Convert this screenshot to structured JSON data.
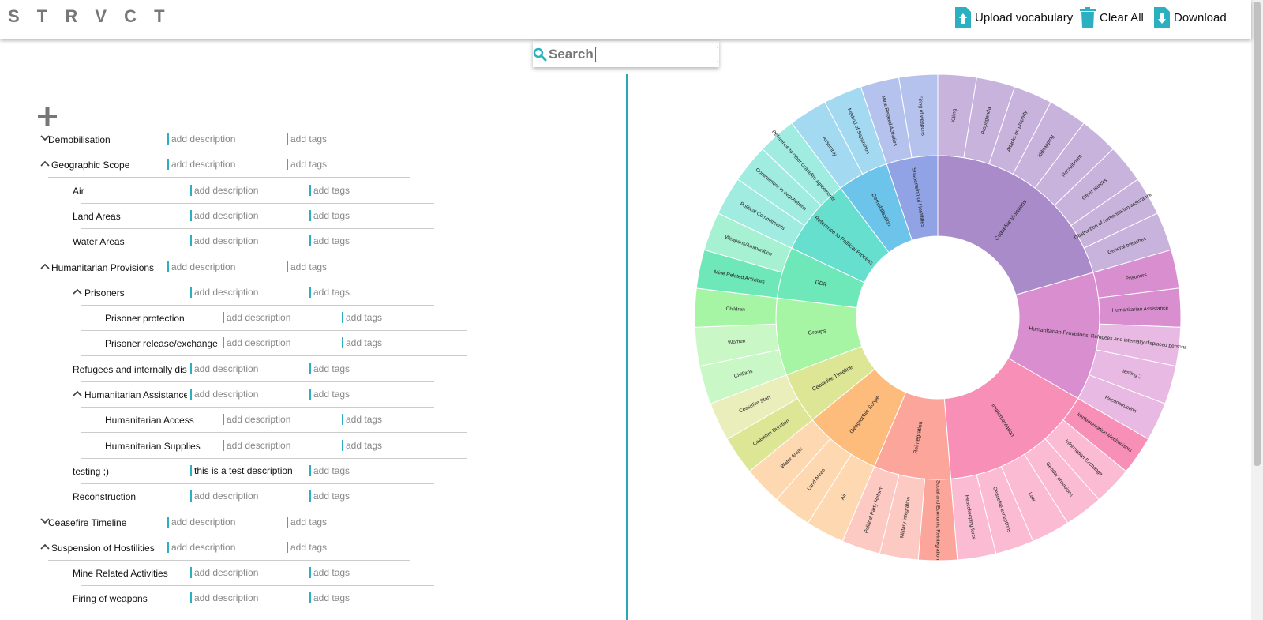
{
  "app": {
    "logo": "S T R V C T"
  },
  "toolbar": {
    "upload_label": "Upload vocabulary",
    "clear_label": "Clear All",
    "download_label": "Download",
    "icon_color": "#2ab0c0"
  },
  "search": {
    "label": "Search",
    "value": ""
  },
  "tree": {
    "add_icon": "plus-icon",
    "rows": [
      {
        "name": "Demobilisation",
        "level": 0,
        "chevron": "down",
        "desc": "add description",
        "tags": "add tags"
      },
      {
        "name": "Geographic Scope",
        "level": 0,
        "chevron": "up",
        "desc": "add description",
        "tags": "add tags"
      },
      {
        "name": "Air",
        "level": 1,
        "chevron": "",
        "desc": "add description",
        "tags": "add tags"
      },
      {
        "name": "Land Areas",
        "level": 1,
        "chevron": "",
        "desc": "add description",
        "tags": "add tags"
      },
      {
        "name": "Water Areas",
        "level": 1,
        "chevron": "",
        "desc": "add description",
        "tags": "add tags"
      },
      {
        "name": "Humanitarian Provisions",
        "level": 0,
        "chevron": "up",
        "desc": "add description",
        "tags": "add tags"
      },
      {
        "name": "Prisoners",
        "level": 1,
        "chevron": "up",
        "desc": "add description",
        "tags": "add tags"
      },
      {
        "name": "Prisoner protection",
        "level": 2,
        "chevron": "",
        "desc": "add description",
        "tags": "add tags"
      },
      {
        "name": "Prisoner release/exchange",
        "level": 2,
        "chevron": "",
        "desc": "add description",
        "tags": "add tags"
      },
      {
        "name": "Refugees and internally displa",
        "level": 1,
        "chevron": "",
        "desc": "add description",
        "tags": "add tags"
      },
      {
        "name": "Humanitarian Assistance",
        "level": 1,
        "chevron": "up",
        "desc": "add description",
        "tags": "add tags"
      },
      {
        "name": "Humanitarian Access",
        "level": 2,
        "chevron": "",
        "desc": "add description",
        "tags": "add tags"
      },
      {
        "name": "Humanitarian Supplies",
        "level": 2,
        "chevron": "",
        "desc": "add description",
        "tags": "add tags"
      },
      {
        "name": "testing ;)",
        "level": 1,
        "chevron": "",
        "desc": "this is a test description",
        "tags": "add tags",
        "filled": true
      },
      {
        "name": "Reconstruction",
        "level": 1,
        "chevron": "",
        "desc": "add description",
        "tags": "add tags"
      },
      {
        "name": "Ceasefire Timeline",
        "level": 0,
        "chevron": "down",
        "desc": "add description",
        "tags": "add tags"
      },
      {
        "name": "Suspension of Hostilities",
        "level": 0,
        "chevron": "up",
        "desc": "add description",
        "tags": "add tags"
      },
      {
        "name": "Mine Related Activities",
        "level": 1,
        "chevron": "",
        "desc": "add description",
        "tags": "add tags"
      },
      {
        "name": "Firing of weapons",
        "level": 1,
        "chevron": "",
        "desc": "add description",
        "tags": "add tags"
      }
    ]
  },
  "sunburst": {
    "inner": [
      {
        "name": "Ceasefire Violations",
        "color": "#a98bc9",
        "outer": [
          {
            "name": "Killing",
            "color": "#c7b3dc"
          },
          {
            "name": "Propaganda",
            "color": "#c7b3dc"
          },
          {
            "name": "Attacks on property",
            "color": "#c7b3dc"
          },
          {
            "name": "Kidnapping",
            "color": "#c7b3dc"
          },
          {
            "name": "Recruitment",
            "color": "#c7b3dc"
          },
          {
            "name": "Other attacks",
            "color": "#c7b3dc"
          },
          {
            "name": "Obstruction of humanitarian assistance",
            "color": "#c7b3dc"
          },
          {
            "name": "General breaches",
            "color": "#c7b3dc"
          }
        ]
      },
      {
        "name": "Humanitarian Provisions",
        "color": "#d98ed0",
        "outer": [
          {
            "name": "Prisoners",
            "color": "#d98ed0"
          },
          {
            "name": "Humanitarian Assistance",
            "color": "#d98ed0"
          },
          {
            "name": "Refugees and internally displaced persons",
            "color": "#e8b9e2"
          },
          {
            "name": "testing ;)",
            "color": "#e8b9e2"
          },
          {
            "name": "Reconstruction",
            "color": "#e8b9e2"
          }
        ]
      },
      {
        "name": "Implementation",
        "color": "#f78fb7",
        "outer": [
          {
            "name": "Implementation Mechanisms",
            "color": "#f78fb7"
          },
          {
            "name": "Information Exchange",
            "color": "#fbbbd2"
          },
          {
            "name": "Gender provisions",
            "color": "#fbbbd2"
          },
          {
            "name": "Law",
            "color": "#fbbbd2"
          },
          {
            "name": "Ceasefire exceptions",
            "color": "#fbbbd2"
          },
          {
            "name": "Peacekeeping force",
            "color": "#fbbbd2"
          }
        ]
      },
      {
        "name": "Reintegration",
        "color": "#fba59b",
        "outer": [
          {
            "name": "Social and Economic Reintegration",
            "color": "#fba59b"
          },
          {
            "name": "Military integration",
            "color": "#fcc9c3"
          },
          {
            "name": "Political Party Reform",
            "color": "#fcc9c3"
          }
        ]
      },
      {
        "name": "Geographic Scope",
        "color": "#fdbb7c",
        "outer": [
          {
            "name": "Air",
            "color": "#fdd8b0"
          },
          {
            "name": "Land Areas",
            "color": "#fdd8b0"
          },
          {
            "name": "Water Areas",
            "color": "#fdd8b0"
          }
        ]
      },
      {
        "name": "Ceasefire Timeline",
        "color": "#dde694",
        "outer": [
          {
            "name": "Ceasefire Duration",
            "color": "#dde694"
          },
          {
            "name": "Ceasefire Start",
            "color": "#e9eebb"
          }
        ]
      },
      {
        "name": "Groups",
        "color": "#a6f5a4",
        "outer": [
          {
            "name": "Civilians",
            "color": "#c9f8c6"
          },
          {
            "name": "Women",
            "color": "#c9f8c6"
          },
          {
            "name": "Children",
            "color": "#a6f5a4"
          }
        ]
      },
      {
        "name": "DDR",
        "color": "#6ee8b9",
        "outer": [
          {
            "name": "Mine Related Activities",
            "color": "#6ee8b9"
          },
          {
            "name": "Weapons/Ammunition",
            "color": "#a5f1d2"
          }
        ]
      },
      {
        "name": "Reference to Political Process",
        "color": "#66dfcf",
        "outer": [
          {
            "name": "Political Commitments",
            "color": "#a0ece1"
          },
          {
            "name": "Commitment to negotiations",
            "color": "#a0ece1"
          },
          {
            "name": "Reference to other ceasefire agreements",
            "color": "#a0ece1"
          }
        ]
      },
      {
        "name": "Demobilisation",
        "color": "#6cc4ea",
        "outer": [
          {
            "name": "Assembly",
            "color": "#a3daf2"
          },
          {
            "name": "Method of Separation",
            "color": "#a3daf2"
          }
        ]
      },
      {
        "name": "Suspension of Hostilities",
        "color": "#91a3e4",
        "outer": [
          {
            "name": "Mine Related Activities",
            "color": "#b5c2ee"
          },
          {
            "name": "Firing of weapons",
            "color": "#b5c2ee"
          }
        ]
      }
    ]
  }
}
